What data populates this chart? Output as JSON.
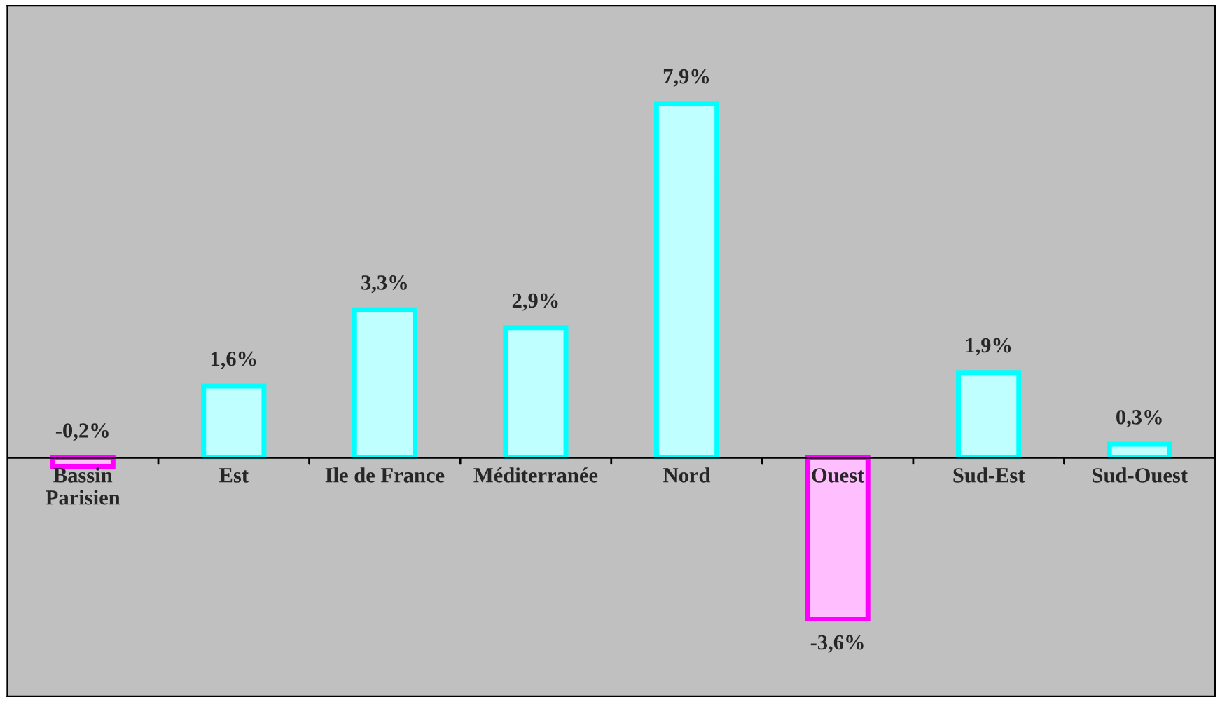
{
  "chart_data": {
    "type": "bar",
    "categories": [
      "Bassin\nParisien",
      "Est",
      "Ile de France",
      "Méditerranée",
      "Nord",
      "Ouest",
      "Sud-Est",
      "Sud-Ouest"
    ],
    "values": [
      -0.2,
      1.6,
      3.3,
      2.9,
      7.9,
      -3.6,
      1.9,
      0.3
    ],
    "value_labels": [
      "-0,2%",
      "1,6%",
      "3,3%",
      "2,9%",
      "7,9%",
      "-3,6%",
      "1,9%",
      "0,3%"
    ],
    "colors": [
      "#ff00ff",
      "#00ffff",
      "#00ffff",
      "#00ffff",
      "#00ffff",
      "#ff00ff",
      "#00ffff",
      "#00ffff"
    ],
    "legend": false
  }
}
